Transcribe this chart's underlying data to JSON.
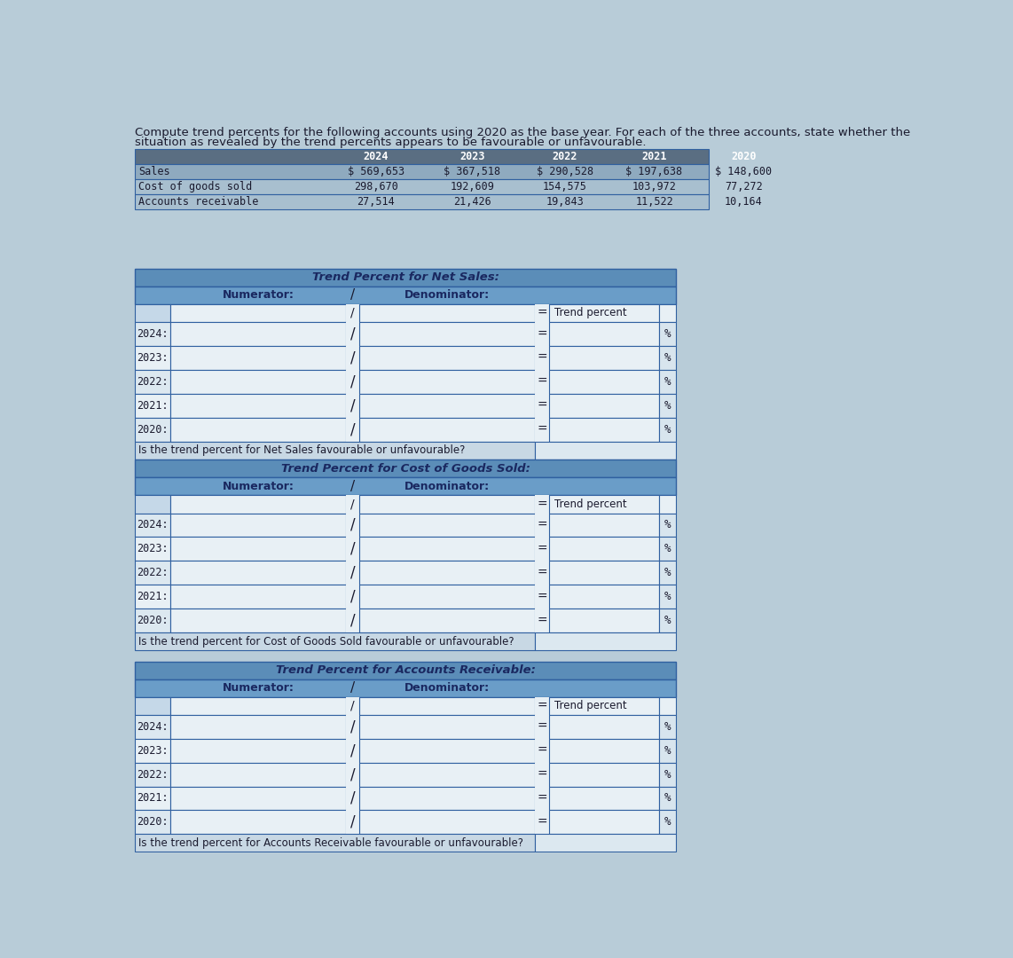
{
  "title_line1": "Compute trend percents for the following accounts using 2020 as the base year. For each of the three accounts, state whether the",
  "title_line2": "situation as revealed by the trend percents appears to be favourable or unfavourable.",
  "years": [
    "2024",
    "2023",
    "2022",
    "2021",
    "2020"
  ],
  "accounts": [
    "Sales",
    "Cost of goods sold",
    "Accounts receivable"
  ],
  "data": {
    "Sales": [
      "$ 569,653",
      "$ 367,518",
      "$ 290,528",
      "$ 197,638",
      "$ 148,600"
    ],
    "Cost of goods sold": [
      "298,670",
      "192,609",
      "154,575",
      "103,972",
      "77,272"
    ],
    "Accounts receivable": [
      "27,514",
      "21,426",
      "19,843",
      "11,522",
      "10,164"
    ]
  },
  "section_titles": [
    "Trend Percent for Net Sales:",
    "Trend Percent for Cost of Goods Sold:",
    "Trend Percent for Accounts Receivable:"
  ],
  "question_texts": [
    "Is the trend percent for Net Sales favourable or unfavourable?",
    "Is the trend percent for Cost of Goods Sold favourable or unfavourable?",
    "Is the trend percent for Accounts Receivable favourable or unfavourable?"
  ],
  "row_years": [
    "2024:",
    "2023:",
    "2022:",
    "2021:",
    "2020:"
  ],
  "bg_color": "#b8ccd8",
  "top_header_bg": "#5a6e82",
  "top_row_bg1": "#8faabf",
  "top_row_bg2": "#a8bfcf",
  "sec_title_bg": "#5b8db8",
  "sec_subhdr_bg": "#6a9dc8",
  "sec_hdr_bg": "#c5d8e8",
  "sec_row_bg": "#dce8f0",
  "sec_input_bg": "#e8f0f5",
  "sec_pct_bg": "#d8e5ee",
  "question_bg": "#c8d8e4",
  "answer_bg": "#dce8f0",
  "grid_color": "#3060a0",
  "text_dark": "#1a1a2e",
  "text_white": "#ffffff",
  "text_blue_dark": "#1a2860"
}
